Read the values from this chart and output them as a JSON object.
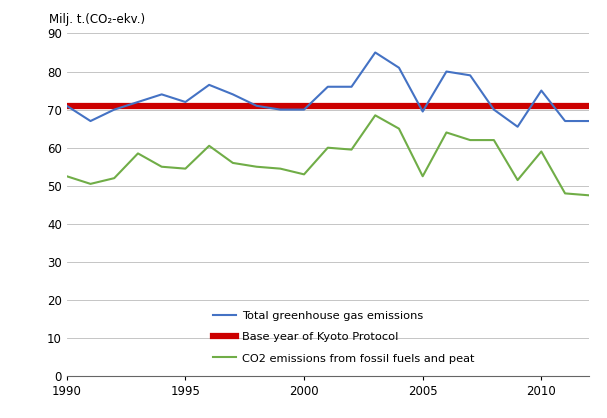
{
  "years": [
    1990,
    1991,
    1992,
    1993,
    1994,
    1995,
    1996,
    1997,
    1998,
    1999,
    2000,
    2001,
    2002,
    2003,
    2004,
    2005,
    2006,
    2007,
    2008,
    2009,
    2010,
    2011,
    2012
  ],
  "total_ghg": [
    71,
    67,
    70,
    72,
    74,
    72,
    76.5,
    74,
    71,
    70,
    70,
    76,
    76,
    85,
    81,
    69.5,
    80,
    79,
    70,
    65.5,
    75,
    67,
    67
  ],
  "kyoto_base": 71,
  "co2_fossil": [
    52.5,
    50.5,
    52,
    58.5,
    55,
    54.5,
    60.5,
    56,
    55,
    54.5,
    53,
    60,
    59.5,
    68.5,
    65,
    52.5,
    64,
    62,
    62,
    51.5,
    59,
    48,
    47.5
  ],
  "total_ghg_color": "#4472C4",
  "kyoto_color": "#CC0000",
  "co2_color": "#70AD47",
  "ylabel": "Milj. t.(CO₂-ekv.)",
  "xlim": [
    1990,
    2012
  ],
  "ylim": [
    0,
    90
  ],
  "yticks": [
    0,
    10,
    20,
    30,
    40,
    50,
    60,
    70,
    80,
    90
  ],
  "xticks": [
    1990,
    1995,
    2000,
    2005,
    2010
  ],
  "legend_labels": [
    "Total greenhouse gas emissions",
    "Base year of Kyoto Protocol",
    "CO2 emissions from fossil fuels and peat"
  ],
  "background_color": "#FFFFFF",
  "grid_color": "#BBBBBB"
}
